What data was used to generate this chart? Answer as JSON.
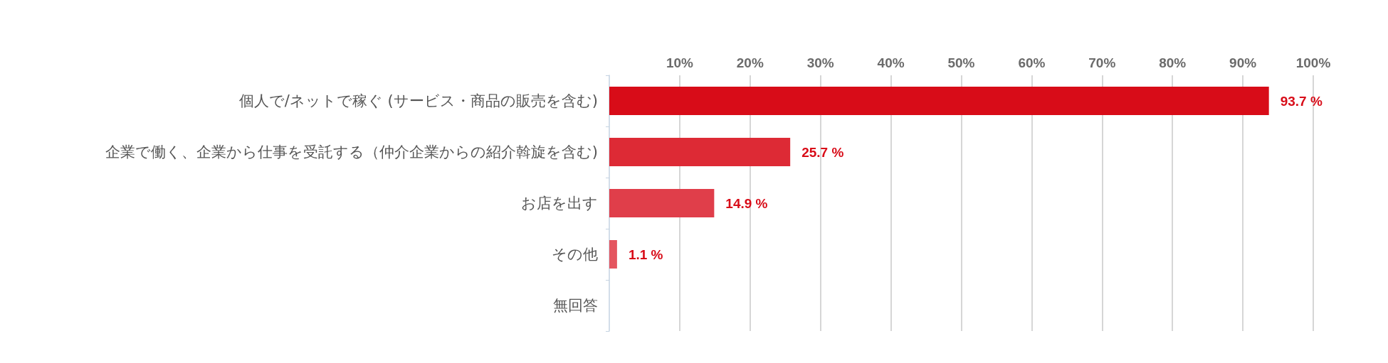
{
  "chart_data": {
    "type": "bar",
    "orientation": "horizontal",
    "categories": [
      "個人で/ネットで稼ぐ (サービス・商品の販売を含む)",
      "企業で働く、企業から仕事を受託する（仲介企業からの紹介斡旋を含む)",
      "お店を出す",
      "その他",
      "無回答"
    ],
    "values": [
      93.7,
      25.7,
      14.9,
      1.1,
      0
    ],
    "colors": [
      "#d80c18",
      "#dd2a35",
      "#e03e4a",
      "#e4555f",
      "#e66a72"
    ],
    "value_labels": [
      "93.7 %",
      "25.7 %",
      "14.9 %",
      "1.1 %",
      null
    ],
    "xlim": [
      0,
      100
    ],
    "xticks": [
      {
        "value": 10,
        "label": "10%"
      },
      {
        "value": 20,
        "label": "20%"
      },
      {
        "value": 30,
        "label": "30%"
      },
      {
        "value": 40,
        "label": "40%"
      },
      {
        "value": 50,
        "label": "50%"
      },
      {
        "value": 60,
        "label": "60%"
      },
      {
        "value": 70,
        "label": "70%"
      },
      {
        "value": 80,
        "label": "80%"
      },
      {
        "value": 90,
        "label": "90%"
      },
      {
        "value": 100,
        "label": "100%"
      }
    ],
    "grid": "x"
  }
}
